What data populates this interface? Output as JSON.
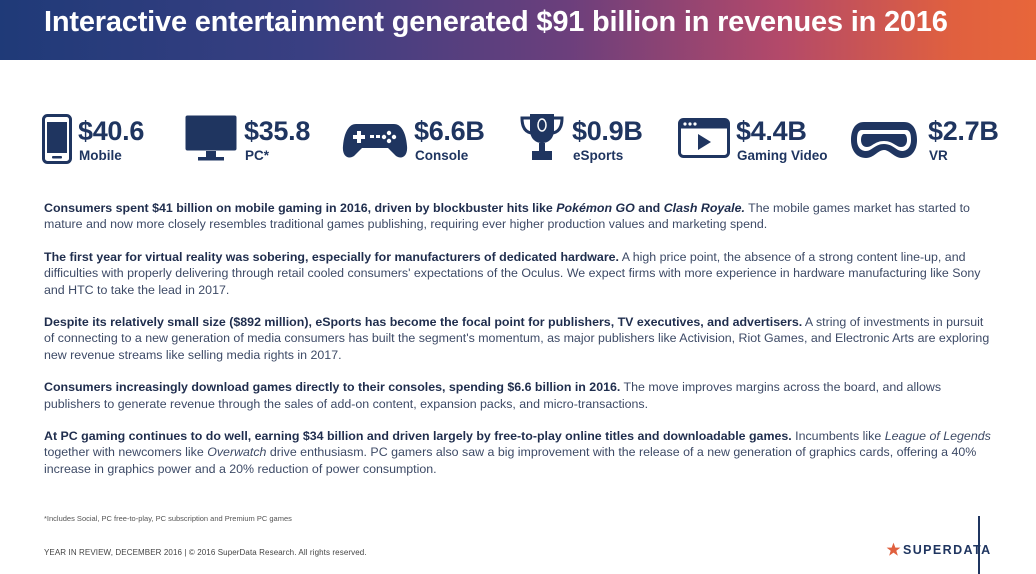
{
  "header": {
    "title": "Interactive entertainment generated $91 billion in revenues in 2016"
  },
  "stats": [
    {
      "value": "$40.6",
      "label": "Mobile",
      "icon": "phone-icon"
    },
    {
      "value": "$35.8",
      "label": "PC*",
      "icon": "monitor-icon"
    },
    {
      "value": "$6.6B",
      "label": "Console",
      "icon": "gamepad-icon"
    },
    {
      "value": "$0.9B",
      "label": "eSports",
      "icon": "trophy-icon"
    },
    {
      "value": "$4.4B",
      "label": "Gaming Video",
      "icon": "video-player-icon"
    },
    {
      "value": "$2.7B",
      "label": "VR",
      "icon": "vr-headset-icon"
    }
  ],
  "paragraphs": [
    {
      "bold_a": "Consumers spent $41 billion on mobile gaming in 2016, driven by blockbuster hits like ",
      "bold_i1": "Pokémon GO",
      "bold_b": " and ",
      "bold_i2": "Clash Royale.",
      "rest": " The mobile games market has started to mature and now more closely resembles traditional games publishing, requiring ever higher production values and marketing spend."
    },
    {
      "bold": "The first year for virtual reality was sobering, especially for manufacturers of dedicated hardware.",
      "rest": " A high price point, the absence of a strong content line-up, and difficulties with properly delivering through retail cooled consumers' expectations of the Oculus. We expect firms with more experience in hardware manufacturing like Sony and HTC to take the lead in 2017."
    },
    {
      "bold": "Despite its relatively small size ($892 million), eSports has become the focal point for publishers, TV executives, and advertisers.",
      "rest": " A string of investments in pursuit of connecting to a new generation of media consumers has built the segment's momentum, as major publishers like Activision, Riot Games, and Electronic Arts are exploring new revenue streams like selling media rights in 2017."
    },
    {
      "bold": "Consumers increasingly download games directly to their consoles, spending $6.6 billion in 2016.",
      "rest": " The move improves margins across the board, and allows publishers to generate revenue through the sales of add-on content, expansion packs, and micro-transactions."
    },
    {
      "bold": "At PC gaming continues to do well, earning $34 billion and driven largely by free-to-play online titles and downloadable games.",
      "rest_a": " Incumbents like ",
      "italic1": "League of Legends",
      "rest_b": " together with newcomers like ",
      "italic2": "Overwatch",
      "rest_c": " drive enthusiasm. PC gamers also saw a big improvement with the release of a new generation of graphics cards, offering a 40% increase in graphics power and a 20% reduction of power consumption."
    }
  ],
  "footnote": "*Includes Social, PC free-to-play, PC subscription and Premium PC games",
  "footer": "YEAR IN REVIEW, DECEMBER 2016  |  © 2016 SuperData Research. All rights reserved.",
  "logo": {
    "text": "SUPERDATA",
    "star_color": "#e0603f"
  },
  "colors": {
    "navy": "#1f3560",
    "accent": "#e0603f"
  }
}
